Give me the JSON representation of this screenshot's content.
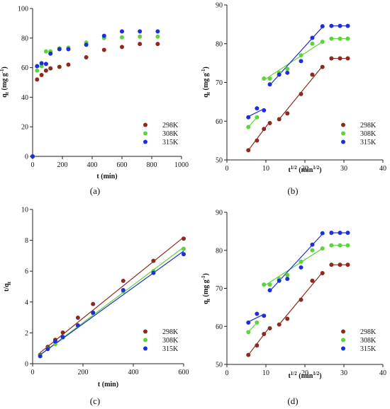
{
  "colors": {
    "298K": "#8B2A1E",
    "308K": "#5FD33A",
    "315K": "#1C2FD8"
  },
  "chart_data": [
    {
      "id": "a",
      "caption": "(a)",
      "type": "scatter",
      "xlabel": "t (min)",
      "ylabel": "qt (mg g-1)",
      "ylabel_main": "q",
      "ylabel_sub": "t",
      "ylabel_rest": " (mg g",
      "ylabel_sup": "-1",
      "ylabel_end": ")",
      "xlim": [
        0,
        1000
      ],
      "ylim": [
        0,
        100
      ],
      "xticks": [
        0,
        200,
        400,
        600,
        800,
        1000
      ],
      "yticks": [
        0,
        20,
        40,
        60,
        80,
        100
      ],
      "series": [
        {
          "name": "298K",
          "points": [
            [
              0,
              0
            ],
            [
              30,
              52
            ],
            [
              60,
              55
            ],
            [
              90,
              58
            ],
            [
              120,
              59.5
            ],
            [
              180,
              60.5
            ],
            [
              240,
              62
            ],
            [
              360,
              67
            ],
            [
              480,
              72
            ],
            [
              600,
              74
            ],
            [
              720,
              76
            ],
            [
              840,
              76
            ]
          ]
        },
        {
          "name": "308K",
          "points": [
            [
              0,
              0
            ],
            [
              30,
              58
            ],
            [
              60,
              61
            ],
            [
              90,
              71
            ],
            [
              120,
              71
            ],
            [
              180,
              73
            ],
            [
              240,
              73.5
            ],
            [
              360,
              77
            ],
            [
              480,
              80
            ],
            [
              600,
              80.5
            ],
            [
              720,
              81
            ],
            [
              840,
              81
            ]
          ]
        },
        {
          "name": "315K",
          "points": [
            [
              0,
              0
            ],
            [
              30,
              61
            ],
            [
              60,
              63
            ],
            [
              90,
              62.5
            ],
            [
              120,
              69.5
            ],
            [
              180,
              72.5
            ],
            [
              240,
              72.5
            ],
            [
              360,
              75.5
            ],
            [
              480,
              81.5
            ],
            [
              600,
              84.5
            ],
            [
              720,
              84.5
            ],
            [
              840,
              84.5
            ]
          ]
        }
      ],
      "fits": []
    },
    {
      "id": "b",
      "caption": "(b)",
      "type": "scatter",
      "xlabel": "t1/2 (min1/2)",
      "xlabel_main": "t",
      "xlabel_sup": "1/2",
      "xlabel_rest": " (min",
      "xlabel_sup2": "1/2",
      "xlabel_end": ")",
      "ylabel": "qt (mg g-1)",
      "ylabel_main": "q",
      "ylabel_sub": "t",
      "ylabel_rest": " (mg g",
      "ylabel_sup": "-1",
      "ylabel_end": ")",
      "xlim": [
        0,
        40
      ],
      "ylim": [
        50,
        90
      ],
      "xticks": [
        0,
        10,
        20,
        30,
        40
      ],
      "yticks": [
        50,
        60,
        70,
        80,
        90
      ],
      "series": [
        {
          "name": "298K",
          "points": [
            [
              5.5,
              52.5
            ],
            [
              7.7,
              55
            ],
            [
              9.5,
              58
            ],
            [
              11,
              59.5
            ],
            [
              13.4,
              60.5
            ],
            [
              15.5,
              62
            ],
            [
              19,
              67
            ],
            [
              21.9,
              72
            ],
            [
              24.5,
              74
            ],
            [
              26.8,
              76.2
            ],
            [
              29,
              76.2
            ],
            [
              31,
              76.2
            ]
          ]
        },
        {
          "name": "308K",
          "points": [
            [
              5.5,
              58.5
            ],
            [
              7.7,
              61
            ],
            [
              9.5,
              71
            ],
            [
              11,
              71
            ],
            [
              13.4,
              72.5
            ],
            [
              15.5,
              73.5
            ],
            [
              19,
              77
            ],
            [
              21.9,
              80
            ],
            [
              24.5,
              80.5
            ],
            [
              26.8,
              81.3
            ],
            [
              29,
              81.3
            ],
            [
              31,
              81.3
            ]
          ]
        },
        {
          "name": "315K",
          "points": [
            [
              5.5,
              61
            ],
            [
              7.7,
              63.3
            ],
            [
              9.5,
              62.8
            ],
            [
              11,
              69.5
            ],
            [
              13.4,
              72
            ],
            [
              15.5,
              72.5
            ],
            [
              19,
              75.5
            ],
            [
              21.9,
              81.5
            ],
            [
              24.5,
              84.5
            ],
            [
              26.8,
              84.6
            ],
            [
              29,
              84.6
            ],
            [
              31,
              84.6
            ]
          ]
        }
      ],
      "fits": [
        {
          "series": "298K",
          "segments": [
            [
              [
                5.5,
                52.5
              ],
              [
                10.5,
                59.2
              ]
            ],
            [
              [
                13.4,
                60.5
              ],
              [
                24.5,
                74.2
              ]
            ],
            [
              [
                26.8,
                76.2
              ],
              [
                31,
                76.2
              ]
            ]
          ]
        },
        {
          "series": "308K",
          "segments": [
            [
              [
                5.5,
                58.5
              ],
              [
                7.7,
                61
              ]
            ],
            [
              [
                9.5,
                70.6
              ],
              [
                24.5,
                80.5
              ]
            ],
            [
              [
                26.8,
                81.3
              ],
              [
                31,
                81.3
              ]
            ]
          ]
        },
        {
          "series": "315K",
          "segments": [
            [
              [
                5.5,
                61.2
              ],
              [
                9.5,
                63.2
              ]
            ],
            [
              [
                11,
                69.3
              ],
              [
                24.5,
                84.3
              ]
            ],
            [
              [
                26.8,
                84.6
              ],
              [
                31,
                84.6
              ]
            ]
          ]
        }
      ]
    },
    {
      "id": "c",
      "caption": "(c)",
      "type": "scatter",
      "xlabel": "t (min)",
      "ylabel": "t/qt",
      "ylabel_main": "t/q",
      "ylabel_sub": "t",
      "ylabel_rest": "",
      "ylabel_sup": "",
      "ylabel_end": "",
      "xlim": [
        0,
        600
      ],
      "ylim": [
        0,
        10
      ],
      "xticks": [
        0,
        200,
        400,
        600
      ],
      "yticks": [
        0,
        2,
        4,
        6,
        8,
        10
      ],
      "series": [
        {
          "name": "298K",
          "points": [
            [
              30,
              0.58
            ],
            [
              60,
              1.09
            ],
            [
              90,
              1.55
            ],
            [
              120,
              2.02
            ],
            [
              180,
              2.98
            ],
            [
              240,
              3.87
            ],
            [
              360,
              5.37
            ],
            [
              480,
              6.67
            ],
            [
              600,
              8.11
            ]
          ]
        },
        {
          "name": "308K",
          "points": [
            [
              30,
              0.52
            ],
            [
              60,
              0.98
            ],
            [
              90,
              1.27
            ],
            [
              120,
              1.69
            ],
            [
              180,
              2.47
            ],
            [
              240,
              3.27
            ],
            [
              360,
              4.68
            ],
            [
              480,
              6.0
            ],
            [
              600,
              7.45
            ]
          ]
        },
        {
          "name": "315K",
          "points": [
            [
              30,
              0.49
            ],
            [
              60,
              0.95
            ],
            [
              90,
              1.44
            ],
            [
              120,
              1.73
            ],
            [
              180,
              2.48
            ],
            [
              240,
              3.31
            ],
            [
              360,
              4.77
            ],
            [
              480,
              5.89
            ],
            [
              600,
              7.1
            ]
          ]
        }
      ],
      "fits": [
        {
          "series": "298K",
          "segments": [
            [
              [
                30,
                0.72
              ],
              [
                600,
                8.2
              ]
            ]
          ]
        },
        {
          "series": "308K",
          "segments": [
            [
              [
                30,
                0.58
              ],
              [
                600,
                7.55
              ]
            ]
          ]
        },
        {
          "series": "315K",
          "segments": [
            [
              [
                30,
                0.58
              ],
              [
                600,
                7.3
              ]
            ]
          ]
        }
      ]
    },
    {
      "id": "d",
      "caption": "(d)",
      "type": "scatter",
      "xlabel": "t1/2 (min1/2)",
      "xlabel_main": "t",
      "xlabel_sup": "1/2",
      "xlabel_rest": " (min",
      "xlabel_sup2": "1/2",
      "xlabel_end": ")",
      "ylabel": "qt (mg g-1)",
      "ylabel_main": "q",
      "ylabel_sub": "t",
      "ylabel_rest": " (mg g",
      "ylabel_sup": "-1",
      "ylabel_end": ")",
      "xlim": [
        0,
        40
      ],
      "ylim": [
        50,
        90
      ],
      "xticks": [
        0,
        10,
        20,
        30,
        40
      ],
      "yticks": [
        50,
        60,
        70,
        80,
        90
      ],
      "series": [
        {
          "name": "298K",
          "points": [
            [
              5.5,
              52.5
            ],
            [
              7.7,
              55
            ],
            [
              9.5,
              58
            ],
            [
              11,
              59.5
            ],
            [
              13.4,
              60.5
            ],
            [
              15.5,
              62
            ],
            [
              19,
              67
            ],
            [
              21.9,
              72
            ],
            [
              24.5,
              74
            ],
            [
              26.8,
              76.2
            ],
            [
              29,
              76.2
            ],
            [
              31,
              76.2
            ]
          ]
        },
        {
          "name": "308K",
          "points": [
            [
              5.5,
              58.5
            ],
            [
              7.7,
              61
            ],
            [
              9.5,
              71
            ],
            [
              11,
              71
            ],
            [
              13.4,
              72.5
            ],
            [
              15.5,
              73.5
            ],
            [
              19,
              77
            ],
            [
              21.9,
              80
            ],
            [
              24.5,
              80.5
            ],
            [
              26.8,
              81.3
            ],
            [
              29,
              81.3
            ],
            [
              31,
              81.3
            ]
          ]
        },
        {
          "name": "315K",
          "points": [
            [
              5.5,
              61
            ],
            [
              7.7,
              63.3
            ],
            [
              9.5,
              62.8
            ],
            [
              11,
              69.5
            ],
            [
              13.4,
              72
            ],
            [
              15.5,
              72.5
            ],
            [
              19,
              75.5
            ],
            [
              21.9,
              81.5
            ],
            [
              24.5,
              84.5
            ],
            [
              26.8,
              84.6
            ],
            [
              29,
              84.6
            ],
            [
              31,
              84.6
            ]
          ]
        }
      ],
      "fits": [
        {
          "series": "298K",
          "segments": [
            [
              [
                5.5,
                52.5
              ],
              [
                10.5,
                59.2
              ]
            ],
            [
              [
                13.4,
                60.5
              ],
              [
                24.5,
                74.2
              ]
            ],
            [
              [
                26.8,
                76.2
              ],
              [
                31,
                76.2
              ]
            ]
          ]
        },
        {
          "series": "308K",
          "segments": [
            [
              [
                5.5,
                58.5
              ],
              [
                7.7,
                61
              ]
            ],
            [
              [
                9.5,
                70.6
              ],
              [
                24.5,
                80.5
              ]
            ],
            [
              [
                26.8,
                81.3
              ],
              [
                31,
                81.3
              ]
            ]
          ]
        },
        {
          "series": "315K",
          "segments": [
            [
              [
                5.5,
                61.2
              ],
              [
                9.5,
                63.2
              ]
            ],
            [
              [
                11,
                69.3
              ],
              [
                24.5,
                84.3
              ]
            ],
            [
              [
                26.8,
                84.6
              ],
              [
                31,
                84.6
              ]
            ]
          ]
        }
      ]
    }
  ]
}
